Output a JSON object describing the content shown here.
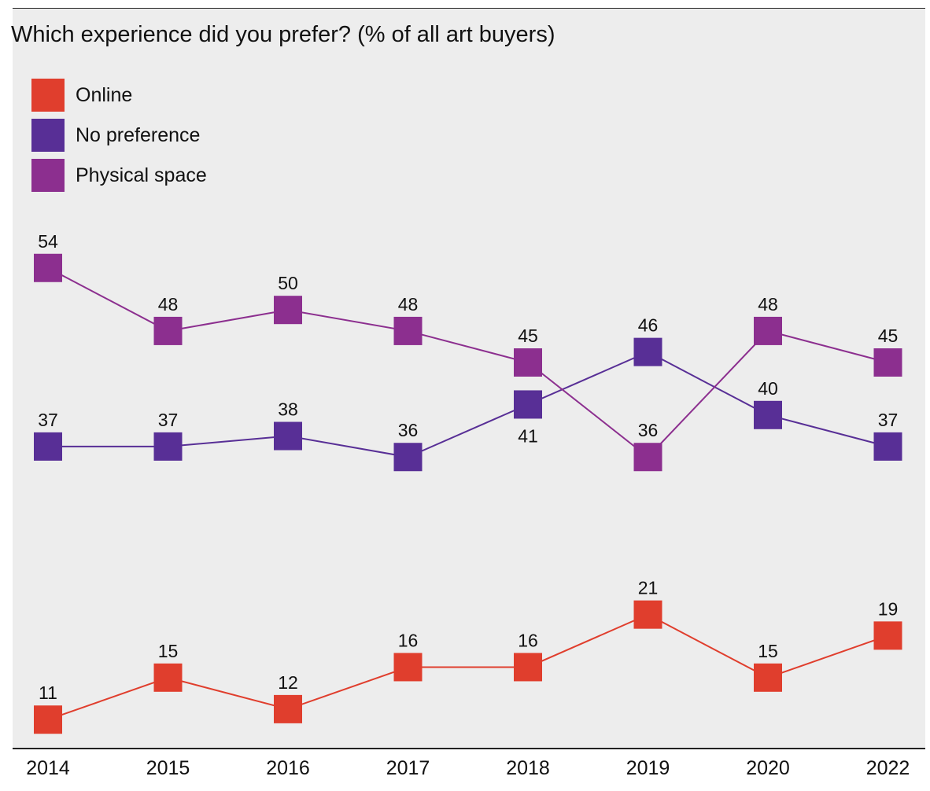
{
  "chart_data": {
    "type": "line",
    "title": "Which experience did you prefer? (% of all art buyers)",
    "xlabel": "",
    "ylabel": "",
    "categories": [
      "2014",
      "2015",
      "2016",
      "2017",
      "2018",
      "2019",
      "2020",
      "2022"
    ],
    "grid": false,
    "legend_position": "top-left",
    "series": [
      {
        "name": "Online",
        "color": "#e03e2d",
        "values": [
          11,
          15,
          12,
          16,
          16,
          21,
          15,
          19
        ]
      },
      {
        "name": "No preference",
        "color": "#582f96",
        "values": [
          37,
          37,
          38,
          36,
          41,
          46,
          40,
          37
        ]
      },
      {
        "name": "Physical space",
        "color": "#8c2f8f",
        "values": [
          54,
          48,
          50,
          48,
          45,
          36,
          48,
          45
        ]
      }
    ]
  }
}
